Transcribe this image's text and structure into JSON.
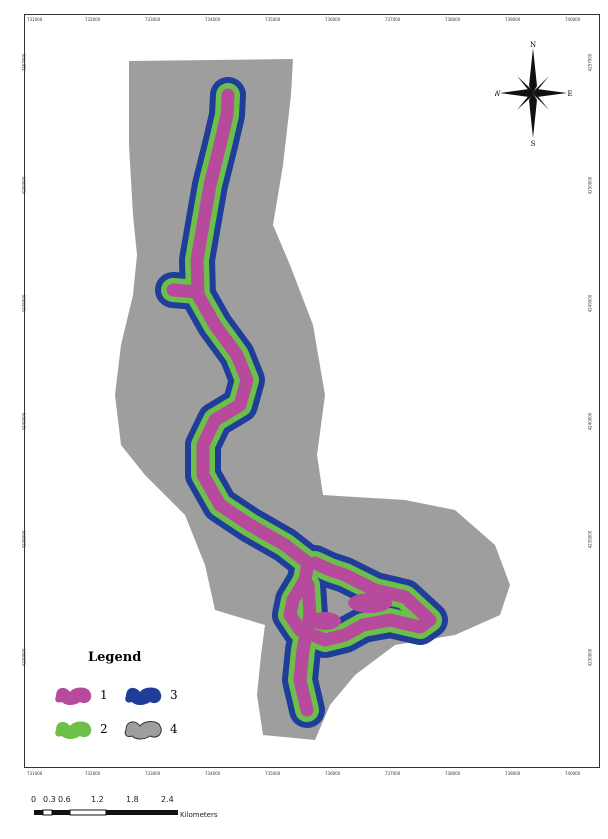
{
  "axes": {
    "x_ticks": [
      "731000",
      "732000",
      "733000",
      "734000",
      "735000",
      "736000",
      "737000",
      "738000",
      "739000",
      "740000"
    ],
    "y_ticks": [
      "4257000",
      "4250000",
      "4245000",
      "4240000",
      "4235000",
      "4230000"
    ]
  },
  "legend": {
    "title": "Legend",
    "items": [
      {
        "label": "1",
        "color": "#b84a9e"
      },
      {
        "label": "3",
        "color": "#1f3e9a"
      },
      {
        "label": "2",
        "color": "#6cc04a"
      },
      {
        "label": "4",
        "color": "#9e9e9e"
      }
    ]
  },
  "north_arrow": {
    "n": "N",
    "s": "S",
    "e": "E",
    "w": "W"
  },
  "scale_bar": {
    "labels": [
      "0",
      "0.3",
      "0.6",
      "1.2",
      "1.8",
      "2.4"
    ],
    "unit": "Kilometers"
  },
  "colors": {
    "zone1": "#b84a9e",
    "zone2": "#6cc04a",
    "zone3": "#1f3e9a",
    "zone4": "#9e9e9e"
  }
}
